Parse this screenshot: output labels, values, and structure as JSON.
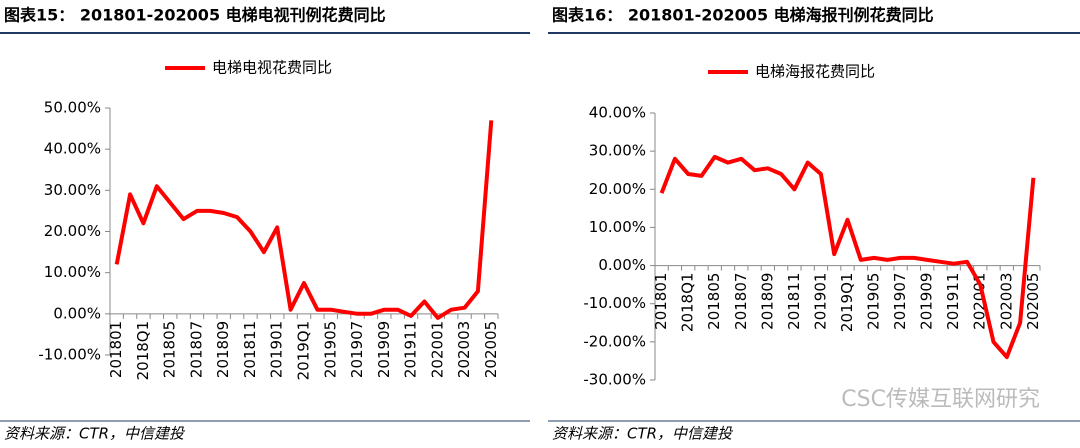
{
  "chart_data": [
    {
      "type": "line",
      "title": "图表15：  201801-202005 电梯电视刊例花费同比",
      "categories": [
        "201801",
        null,
        "2018Q1",
        null,
        "201805",
        null,
        "201807",
        null,
        "201809",
        null,
        "201811",
        null,
        "201901",
        null,
        "2019Q1",
        null,
        "201905",
        null,
        "201907",
        null,
        "201909",
        null,
        "201911",
        null,
        "202001",
        null,
        "202003",
        null,
        "202005"
      ],
      "series": [
        {
          "name": "电梯电视花费同比",
          "color": "#ff0000",
          "values": [
            12,
            29,
            22,
            31,
            27,
            23,
            25,
            25,
            24.5,
            23.5,
            20,
            15,
            21,
            1,
            7.5,
            1,
            1,
            0.5,
            0,
            0,
            1,
            1,
            -0.5,
            3,
            -1,
            1,
            1.5,
            5.5,
            47
          ]
        }
      ],
      "ylim": [
        -10,
        50
      ],
      "yticks": [
        {
          "value": -10,
          "label": "-10.00%"
        },
        {
          "value": 0,
          "label": "0.00%"
        },
        {
          "value": 10,
          "label": "10.00%"
        },
        {
          "value": 20,
          "label": "20.00%"
        },
        {
          "value": 30,
          "label": "30.00%"
        },
        {
          "value": 40,
          "label": "40.00%"
        },
        {
          "value": 50,
          "label": "50.00%"
        }
      ],
      "grid": false,
      "source": "资料来源：CTR，中信建投"
    },
    {
      "type": "line",
      "title": "图表16：  201801-202005 电梯海报刊例花费同比",
      "categories": [
        "201801",
        null,
        "2018Q1",
        null,
        "201805",
        null,
        "201807",
        null,
        "201809",
        null,
        "201811",
        null,
        "201901",
        null,
        "2019Q1",
        null,
        "201905",
        null,
        "201907",
        null,
        "201909",
        null,
        "201911",
        null,
        "202001",
        null,
        "202003",
        null,
        "202005"
      ],
      "series": [
        {
          "name": "电梯海报花费同比",
          "color": "#ff0000",
          "values": [
            19,
            28,
            24,
            23.5,
            28.5,
            27,
            28,
            25,
            25.5,
            24,
            20,
            27,
            24,
            3,
            12,
            1.5,
            2,
            1.5,
            2,
            2,
            1.5,
            1,
            0.5,
            1,
            -5,
            -20,
            -24,
            -15,
            23
          ]
        }
      ],
      "ylim": [
        -30,
        40
      ],
      "yticks": [
        {
          "value": -30,
          "label": "-30.00%"
        },
        {
          "value": -20,
          "label": "-20.00%"
        },
        {
          "value": -10,
          "label": "-10.00%"
        },
        {
          "value": 0,
          "label": "0.00%"
        },
        {
          "value": 10,
          "label": "10.00%"
        },
        {
          "value": 20,
          "label": "20.00%"
        },
        {
          "value": 30,
          "label": "30.00%"
        },
        {
          "value": 40,
          "label": "40.00%"
        }
      ],
      "grid": false,
      "source": "资料来源：CTR，中信建投"
    }
  ],
  "watermark": "CSC传媒互联网研究"
}
